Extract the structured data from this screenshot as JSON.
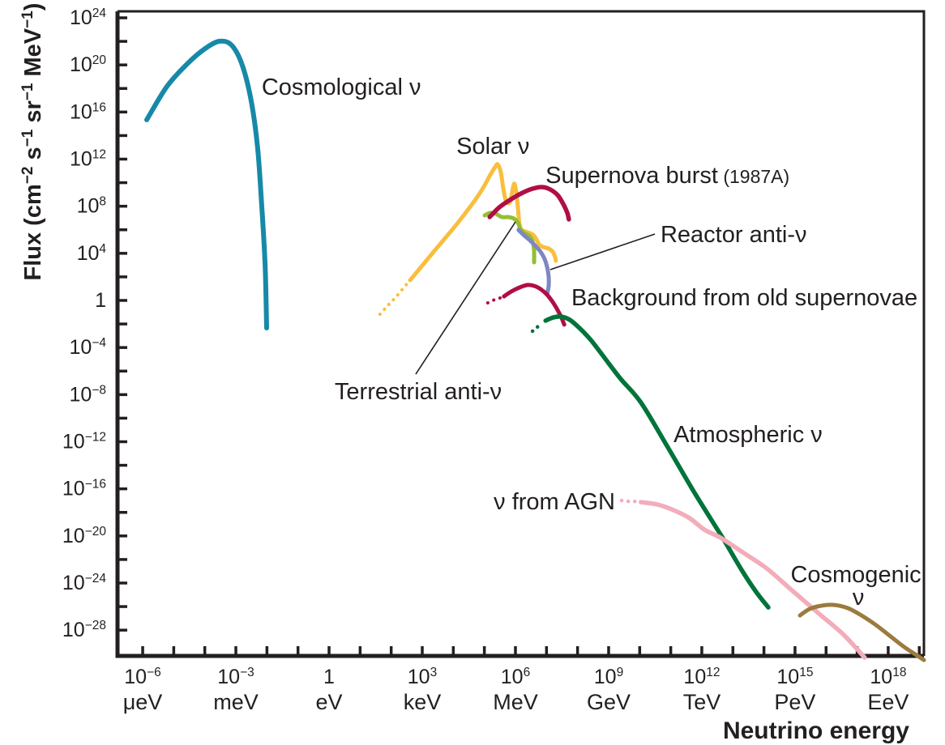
{
  "figure": {
    "background": "#ffffff",
    "axis_color": "#231f20",
    "text_color": "#231f20"
  },
  "chart_data": {
    "type": "line",
    "title": "",
    "xlabel": "Neutrino energy",
    "ylabel_plain": "Flux (cm−2 s−1 sr−1 MeV−1)",
    "ylabel_rich": [
      {
        "t": "Flux (cm"
      },
      {
        "sup": "−2"
      },
      {
        "t": " s"
      },
      {
        "sup": "−1"
      },
      {
        "t": " sr"
      },
      {
        "sup": "−1"
      },
      {
        "t": " MeV"
      },
      {
        "sup": "−1"
      },
      {
        "t": ")"
      }
    ],
    "x_axis": {
      "log10_range": [
        -6.81,
        19.15
      ],
      "minor_tick_step": 1,
      "labeled_ticks": [
        {
          "exp": -6,
          "mantissa": "10",
          "exponent": "−6",
          "unit": "μeV"
        },
        {
          "exp": -3,
          "mantissa": "10",
          "exponent": "−3",
          "unit": "meV"
        },
        {
          "exp": 0,
          "mantissa": "1",
          "exponent": "",
          "unit": "eV"
        },
        {
          "exp": 3,
          "mantissa": "10",
          "exponent": "3",
          "unit": "keV"
        },
        {
          "exp": 6,
          "mantissa": "10",
          "exponent": "6",
          "unit": "MeV"
        },
        {
          "exp": 9,
          "mantissa": "10",
          "exponent": "9",
          "unit": "GeV"
        },
        {
          "exp": 12,
          "mantissa": "10",
          "exponent": "12",
          "unit": "TeV"
        },
        {
          "exp": 15,
          "mantissa": "10",
          "exponent": "15",
          "unit": "PeV"
        },
        {
          "exp": 18,
          "mantissa": "10",
          "exponent": "18",
          "unit": "EeV"
        }
      ]
    },
    "y_axis": {
      "log10_range": [
        -30.19,
        24.55
      ],
      "minor_tick_step": 2,
      "labeled_ticks": [
        {
          "exp": 24,
          "mantissa": "10",
          "exponent": "24"
        },
        {
          "exp": 20,
          "mantissa": "10",
          "exponent": "20"
        },
        {
          "exp": 16,
          "mantissa": "10",
          "exponent": "16"
        },
        {
          "exp": 12,
          "mantissa": "10",
          "exponent": "12"
        },
        {
          "exp": 8,
          "mantissa": "10",
          "exponent": "8"
        },
        {
          "exp": 4,
          "mantissa": "10",
          "exponent": "4"
        },
        {
          "exp": 0,
          "mantissa": "1",
          "exponent": ""
        },
        {
          "exp": -4,
          "mantissa": "10",
          "exponent": "−4"
        },
        {
          "exp": -8,
          "mantissa": "10",
          "exponent": "−8"
        },
        {
          "exp": -12,
          "mantissa": "10",
          "exponent": "−12"
        },
        {
          "exp": -16,
          "mantissa": "10",
          "exponent": "−16"
        },
        {
          "exp": -20,
          "mantissa": "10",
          "exponent": "−20"
        },
        {
          "exp": -24,
          "mantissa": "10",
          "exponent": "−24"
        },
        {
          "exp": -28,
          "mantissa": "10",
          "exponent": "−28"
        }
      ]
    },
    "series": [
      {
        "id": "cosmological",
        "label": "Cosmological ν",
        "color": "#1789a8",
        "width": 6,
        "dotted": [],
        "points": [
          [
            -5.87,
            15.34
          ],
          [
            -5.22,
            18.16
          ],
          [
            -4.57,
            20.08
          ],
          [
            -3.99,
            21.39
          ],
          [
            -3.52,
            22.01
          ],
          [
            -3.13,
            21.66
          ],
          [
            -2.79,
            19.94
          ],
          [
            -2.5,
            16.85
          ],
          [
            -2.3,
            12.93
          ],
          [
            -2.17,
            8.18
          ],
          [
            -2.06,
            3.03
          ],
          [
            -2.01,
            -2.34
          ]
        ]
      },
      {
        "id": "solar",
        "label": "Solar ν",
        "color": "#f9be3d",
        "width": 5,
        "dotted": [
          [
            1.64,
            -1.17
          ],
          [
            1.9,
            -0.41
          ],
          [
            2.17,
            0.34
          ],
          [
            2.43,
            1.17
          ],
          [
            2.61,
            1.72
          ]
        ],
        "points": [
          [
            2.61,
            1.72
          ],
          [
            3.39,
            4.2
          ],
          [
            4.17,
            6.67
          ],
          [
            4.83,
            9.01
          ],
          [
            5.19,
            10.66
          ],
          [
            5.35,
            11.35
          ],
          [
            5.43,
            11.55
          ],
          [
            5.53,
            10.87
          ],
          [
            5.61,
            9.49
          ],
          [
            5.69,
            8.46
          ],
          [
            5.77,
            8.25
          ],
          [
            5.84,
            8.46
          ],
          [
            5.92,
            9.56
          ],
          [
            5.97,
            9.9
          ],
          [
            6.03,
            9.15
          ],
          [
            6.08,
            7.84
          ],
          [
            6.13,
            6.46
          ],
          [
            6.21,
            5.98
          ],
          [
            6.39,
            5.78
          ],
          [
            6.57,
            5.57
          ],
          [
            6.68,
            5.16
          ],
          [
            6.76,
            4.75
          ],
          [
            6.89,
            4.54
          ],
          [
            7.07,
            4.4
          ],
          [
            7.2,
            4.13
          ],
          [
            7.28,
            3.65
          ],
          [
            7.3,
            3.37
          ]
        ]
      },
      {
        "id": "terrestrial",
        "label": "Terrestrial anti-ν",
        "color": "#94bf33",
        "width": 5,
        "dotted": [],
        "points": [
          [
            5.01,
            7.22
          ],
          [
            5.19,
            7.43
          ],
          [
            5.37,
            7.36
          ],
          [
            5.56,
            7.08
          ],
          [
            5.77,
            7.08
          ],
          [
            5.95,
            6.95
          ],
          [
            6.08,
            6.6
          ],
          [
            6.16,
            6.05
          ],
          [
            6.29,
            5.71
          ],
          [
            6.44,
            5.5
          ],
          [
            6.55,
            5.02
          ],
          [
            6.6,
            4.2
          ],
          [
            6.6,
            3.23
          ]
        ]
      },
      {
        "id": "reactor",
        "label": "Reactor anti-ν",
        "color": "#7f86c2",
        "width": 5,
        "dotted": [],
        "points": [
          [
            6.1,
            5.98
          ],
          [
            6.29,
            5.5
          ],
          [
            6.47,
            5.09
          ],
          [
            6.65,
            4.61
          ],
          [
            6.81,
            4.13
          ],
          [
            6.94,
            3.51
          ],
          [
            7.02,
            2.82
          ],
          [
            7.07,
            1.99
          ],
          [
            7.07,
            1.24
          ],
          [
            7.02,
            0.55
          ]
        ]
      },
      {
        "id": "supernova-burst",
        "label": "Supernova burst (1987A)",
        "color": "#b00e47",
        "width": 5.5,
        "dotted": [],
        "points": [
          [
            5.17,
            7.08
          ],
          [
            5.48,
            7.91
          ],
          [
            5.82,
            8.53
          ],
          [
            6.18,
            9.08
          ],
          [
            6.55,
            9.49
          ],
          [
            6.86,
            9.63
          ],
          [
            7.12,
            9.42
          ],
          [
            7.36,
            8.94
          ],
          [
            7.54,
            8.18
          ],
          [
            7.67,
            7.43
          ],
          [
            7.72,
            6.88
          ]
        ]
      },
      {
        "id": "old-supernovae",
        "label": "Background from old supernovae",
        "color": "#b00e47",
        "width": 5,
        "dotted": [
          [
            5.11,
            -0.21
          ],
          [
            5.27,
            0.0
          ],
          [
            5.43,
            0.14
          ],
          [
            5.58,
            0.28
          ]
        ],
        "points": [
          [
            5.63,
            0.34
          ],
          [
            5.87,
            0.76
          ],
          [
            6.13,
            1.1
          ],
          [
            6.39,
            1.31
          ],
          [
            6.6,
            1.24
          ],
          [
            6.81,
            0.96
          ],
          [
            7.02,
            0.48
          ],
          [
            7.2,
            -0.14
          ],
          [
            7.36,
            -0.83
          ],
          [
            7.49,
            -1.51
          ],
          [
            7.57,
            -2.06
          ]
        ]
      },
      {
        "id": "atmospheric",
        "label": "Atmospheric ν",
        "color": "#02743a",
        "width": 5.5,
        "dotted": [
          [
            6.55,
            -2.61
          ],
          [
            6.7,
            -2.27
          ],
          [
            6.86,
            -1.93
          ]
        ],
        "points": [
          [
            6.97,
            -1.72
          ],
          [
            7.23,
            -1.44
          ],
          [
            7.49,
            -1.38
          ],
          [
            7.75,
            -1.65
          ],
          [
            8.06,
            -2.34
          ],
          [
            8.43,
            -3.37
          ],
          [
            8.87,
            -4.88
          ],
          [
            9.39,
            -6.67
          ],
          [
            10.04,
            -8.67
          ],
          [
            10.9,
            -12.45
          ],
          [
            11.79,
            -16.44
          ],
          [
            12.65,
            -20.08
          ],
          [
            13.3,
            -22.97
          ],
          [
            13.75,
            -24.76
          ],
          [
            14.14,
            -26.07
          ]
        ]
      },
      {
        "id": "agn",
        "label": "ν from AGN",
        "color": "#f3acba",
        "width": 5.5,
        "dotted": [
          [
            9.42,
            -16.99
          ],
          [
            9.6,
            -17.06
          ],
          [
            9.81,
            -17.06
          ],
          [
            9.99,
            -17.13
          ]
        ],
        "points": [
          [
            10.04,
            -17.13
          ],
          [
            10.57,
            -17.33
          ],
          [
            11.09,
            -17.81
          ],
          [
            11.61,
            -18.5
          ],
          [
            12.08,
            -19.46
          ],
          [
            12.6,
            -20.15
          ],
          [
            13.36,
            -21.46
          ],
          [
            14.09,
            -22.76
          ],
          [
            14.87,
            -24.55
          ],
          [
            15.78,
            -26.62
          ],
          [
            16.57,
            -28.4
          ],
          [
            17.24,
            -30.33
          ]
        ]
      },
      {
        "id": "cosmogenic",
        "label": "Cosmogenic ν",
        "color": "#9b7b3e",
        "width": 5,
        "dotted": [],
        "points": [
          [
            15.16,
            -26.75
          ],
          [
            15.47,
            -26.2
          ],
          [
            15.83,
            -25.93
          ],
          [
            16.25,
            -25.86
          ],
          [
            16.7,
            -26.13
          ],
          [
            17.14,
            -26.75
          ],
          [
            17.61,
            -27.58
          ],
          [
            18.08,
            -28.54
          ],
          [
            18.52,
            -29.44
          ],
          [
            18.91,
            -30.12
          ],
          [
            19.15,
            -30.54
          ]
        ]
      }
    ],
    "annotations": [
      {
        "id": "cosmological",
        "text": "Cosmological ν",
        "x": -2.17,
        "y": 18.16,
        "anchor": "start",
        "size": 29
      },
      {
        "id": "solar",
        "text": "Solar ν",
        "x": 4.1,
        "y": 13.14,
        "anchor": "start",
        "size": 29
      },
      {
        "id": "supernova-burst",
        "text": "Supernova burst",
        "suffix": " (1987A)",
        "suffix_size": 23,
        "x": 6.97,
        "y": 10.66,
        "anchor": "start",
        "size": 29
      },
      {
        "id": "reactor",
        "text": "Reactor anti-ν",
        "x": 10.67,
        "y": 5.64,
        "anchor": "start",
        "size": 29
      },
      {
        "id": "old-supernovae",
        "text": "Background from old supernovae",
        "x": 7.8,
        "y": 0.28,
        "anchor": "start",
        "size": 29
      },
      {
        "id": "terrestrial",
        "text": "Terrestrial anti-ν",
        "x": 0.18,
        "y": -7.7,
        "anchor": "start",
        "size": 29
      },
      {
        "id": "atmospheric",
        "text": "Atmospheric ν",
        "x": 11.09,
        "y": -11.35,
        "anchor": "start",
        "size": 29
      },
      {
        "id": "agn",
        "text": "ν from AGN",
        "x": 5.3,
        "y": -17.06,
        "anchor": "start",
        "size": 29
      },
      {
        "id": "cosmogenic",
        "text": "Cosmogenic",
        "x": 16.96,
        "y": -23.25,
        "anchor": "middle",
        "size": 29
      },
      {
        "id": "cosmogenic-nu",
        "text": "ν",
        "x": 17.04,
        "y": -25.17,
        "anchor": "middle",
        "size": 29
      }
    ],
    "leader_lines": [
      {
        "id": "terrestrial-leader",
        "from": [
          2.79,
          -6.26
        ],
        "to": [
          6.0,
          6.67
        ]
      },
      {
        "id": "reactor-leader",
        "from": [
          10.49,
          5.64
        ],
        "to": [
          7.12,
          2.61
        ]
      }
    ]
  }
}
